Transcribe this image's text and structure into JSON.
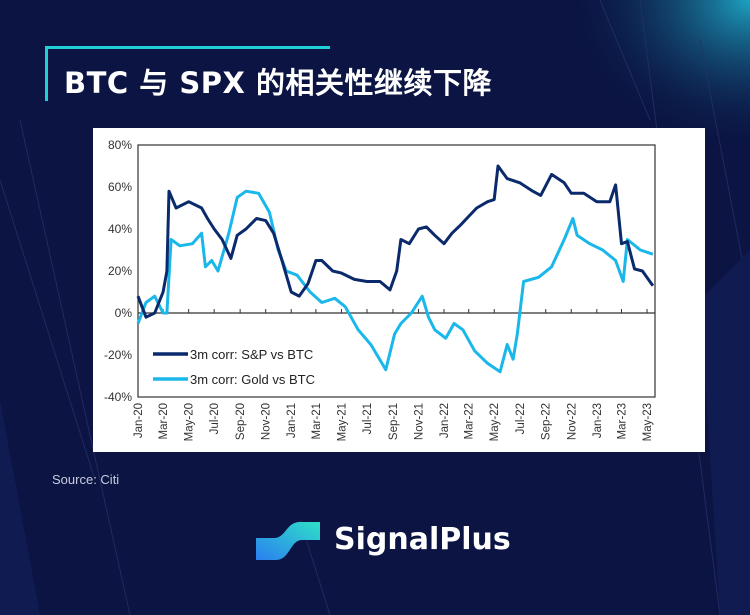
{
  "header": {
    "title": "BTC 与 SPX 的相关性继续下降"
  },
  "source": "Source: Citi",
  "brand": {
    "name": "SignalPlus",
    "colors": [
      "#1fd0d8",
      "#2a8cf0"
    ]
  },
  "colors": {
    "background": "#0b1442",
    "accent": "#1fd0d8"
  },
  "chart_data": {
    "type": "line",
    "title": "",
    "xlabel": "",
    "ylabel": "",
    "ylim": [
      -40,
      80
    ],
    "yticks": [
      "80%",
      "60%",
      "40%",
      "20%",
      "0%",
      "-20%",
      "-40%"
    ],
    "ytick_values": [
      80,
      60,
      40,
      20,
      0,
      -20,
      -40
    ],
    "xlim": [
      "2020-01-01",
      "2023-05-20"
    ],
    "xticks": [
      "Jan-20",
      "Mar-20",
      "May-20",
      "Jul-20",
      "Sep-20",
      "Nov-20",
      "Jan-21",
      "Mar-21",
      "May-21",
      "Jul-21",
      "Sep-21",
      "Nov-21",
      "Jan-22",
      "Mar-22",
      "May-22",
      "Jul-22",
      "Sep-22",
      "Nov-22",
      "Jan-23",
      "Mar-23",
      "May-23"
    ],
    "grid": false,
    "legend": "bottom-left",
    "series": [
      {
        "name": "3m corr: S&P vs BTC",
        "color": "#0a2a6b",
        "x": [
          "2020-01-01",
          "2020-01-20",
          "2020-02-10",
          "2020-03-01",
          "2020-03-10",
          "2020-03-15",
          "2020-04-01",
          "2020-05-01",
          "2020-06-01",
          "2020-06-15",
          "2020-07-01",
          "2020-07-20",
          "2020-08-10",
          "2020-08-25",
          "2020-09-15",
          "2020-10-10",
          "2020-11-01",
          "2020-11-20",
          "2020-12-10",
          "2021-01-01",
          "2021-01-20",
          "2021-02-10",
          "2021-03-01",
          "2021-03-15",
          "2021-04-10",
          "2021-05-01",
          "2021-06-01",
          "2021-07-01",
          "2021-08-01",
          "2021-08-25",
          "2021-09-10",
          "2021-09-20",
          "2021-10-10",
          "2021-11-01",
          "2021-11-20",
          "2021-12-10",
          "2022-01-01",
          "2022-01-20",
          "2022-02-10",
          "2022-03-01",
          "2022-03-20",
          "2022-04-15",
          "2022-05-01",
          "2022-05-10",
          "2022-06-01",
          "2022-07-01",
          "2022-08-01",
          "2022-08-20",
          "2022-09-15",
          "2022-10-15",
          "2022-11-01",
          "2022-12-01",
          "2023-01-01",
          "2023-02-01",
          "2023-02-15",
          "2023-03-01",
          "2023-03-15",
          "2023-04-01",
          "2023-04-20",
          "2023-05-15"
        ],
        "y": [
          8,
          -2,
          0,
          10,
          20,
          58,
          50,
          53,
          50,
          45,
          40,
          35,
          26,
          37,
          40,
          45,
          44,
          38,
          25,
          10,
          8,
          14,
          25,
          25,
          20,
          19,
          16,
          15,
          15,
          11,
          20,
          35,
          33,
          40,
          41,
          37,
          33,
          38,
          42,
          46,
          50,
          53,
          54,
          70,
          64,
          62,
          58,
          56,
          66,
          62,
          57,
          57,
          53,
          53,
          61,
          33,
          34,
          21,
          20,
          13
        ]
      },
      {
        "name": "3m corr: Gold vs BTC",
        "color": "#1ab7ea",
        "x": [
          "2020-01-01",
          "2020-01-20",
          "2020-02-10",
          "2020-03-01",
          "2020-03-10",
          "2020-03-20",
          "2020-04-10",
          "2020-05-10",
          "2020-06-01",
          "2020-06-10",
          "2020-06-25",
          "2020-07-10",
          "2020-08-05",
          "2020-08-25",
          "2020-09-15",
          "2020-10-15",
          "2020-11-10",
          "2020-12-01",
          "2020-12-20",
          "2021-01-15",
          "2021-02-15",
          "2021-03-15",
          "2021-04-15",
          "2021-05-10",
          "2021-06-10",
          "2021-07-10",
          "2021-08-15",
          "2021-09-05",
          "2021-09-20",
          "2021-10-15",
          "2021-11-10",
          "2021-11-25",
          "2021-12-10",
          "2022-01-05",
          "2022-01-25",
          "2022-02-15",
          "2022-03-15",
          "2022-04-15",
          "2022-05-15",
          "2022-06-01",
          "2022-06-15",
          "2022-06-25",
          "2022-07-10",
          "2022-08-15",
          "2022-09-15",
          "2022-10-15",
          "2022-11-05",
          "2022-11-15",
          "2022-12-15",
          "2023-01-15",
          "2023-02-15",
          "2023-03-05",
          "2023-03-15",
          "2023-04-15",
          "2023-05-15"
        ],
        "y": [
          -5,
          5,
          8,
          0,
          0,
          35,
          32,
          33,
          38,
          22,
          25,
          20,
          38,
          55,
          58,
          57,
          48,
          30,
          20,
          18,
          10,
          5,
          7,
          3,
          -8,
          -15,
          -27,
          -10,
          -5,
          0,
          8,
          -2,
          -8,
          -12,
          -5,
          -8,
          -18,
          -24,
          -28,
          -15,
          -22,
          -10,
          15,
          17,
          22,
          35,
          45,
          37,
          33,
          30,
          25,
          15,
          35,
          30,
          28
        ]
      }
    ]
  }
}
